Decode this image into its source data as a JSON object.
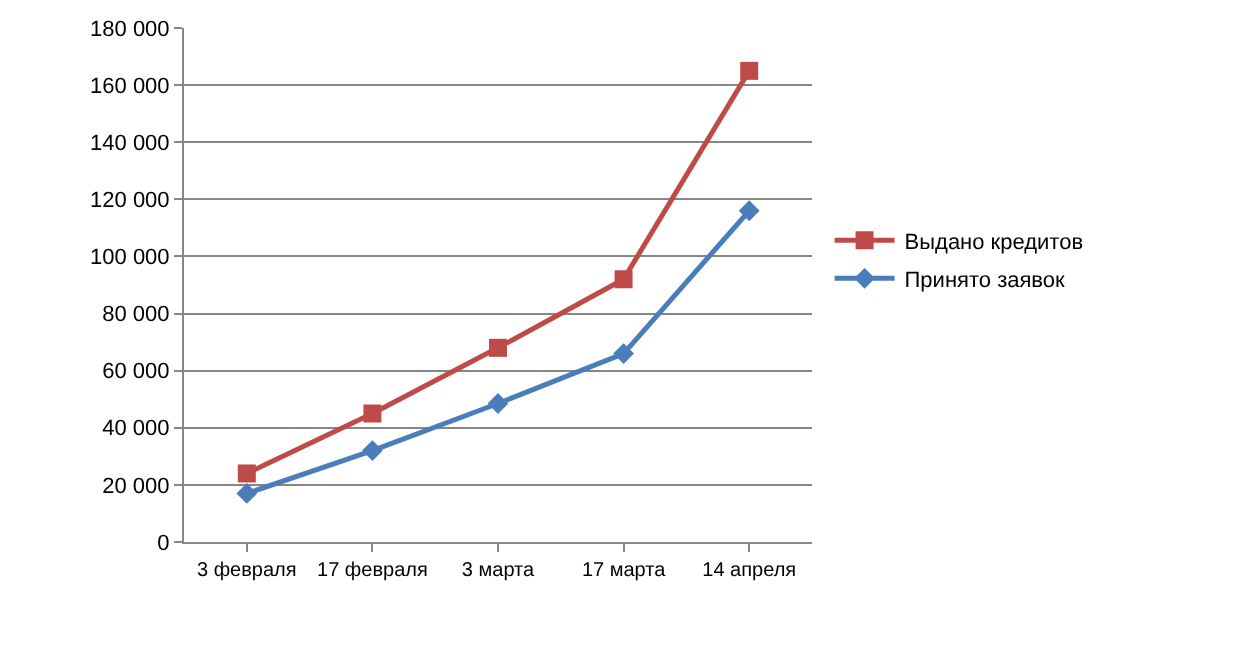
{
  "chart_data": {
    "type": "line",
    "categories": [
      "3 февраля",
      "17 февраля",
      "3 марта",
      "17 марта",
      "14 апреля"
    ],
    "series": [
      {
        "name": "Выдано кредитов",
        "color": "#be4b48",
        "values": [
          24000,
          45000,
          68000,
          92000,
          165000
        ],
        "marker": "square"
      },
      {
        "name": "Принято заявок",
        "color": "#4a7ebb",
        "values": [
          17000,
          32000,
          48500,
          66000,
          116000
        ],
        "marker": "diamond"
      }
    ],
    "ylim": [
      0,
      180000
    ],
    "yticks": [
      {
        "value": 0,
        "label": "0"
      },
      {
        "value": 20000,
        "label": "20 000"
      },
      {
        "value": 40000,
        "label": "40 000"
      },
      {
        "value": 60000,
        "label": "60 000"
      },
      {
        "value": 80000,
        "label": "80 000"
      },
      {
        "value": 100000,
        "label": "100 000"
      },
      {
        "value": 120000,
        "label": "120 000"
      },
      {
        "value": 140000,
        "label": "140 000"
      },
      {
        "value": 160000,
        "label": "160 000"
      },
      {
        "value": 180000,
        "label": "180 000"
      }
    ],
    "grid": "y",
    "legend": "right",
    "line_style": "solid"
  }
}
